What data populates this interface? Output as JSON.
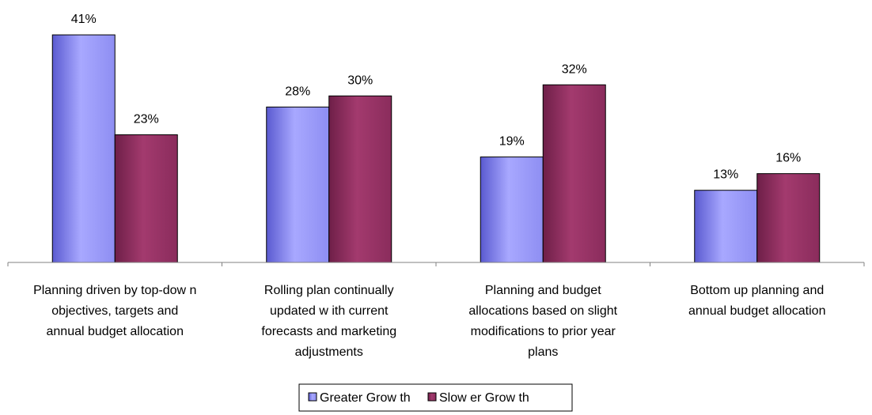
{
  "chart_data": {
    "type": "bar",
    "categories": [
      [
        "Planning driven by top-dow n",
        "objectives, targets and",
        "annual budget allocation"
      ],
      [
        "Rolling plan continually",
        "updated w ith current",
        "forecasts and marketing",
        "adjustments"
      ],
      [
        "Planning and budget",
        "allocations based on slight",
        "modifications to prior year",
        "plans"
      ],
      [
        "Bottom up planning and",
        "annual budget allocation"
      ]
    ],
    "series": [
      {
        "name": "Greater Grow th",
        "values": [
          41,
          28,
          19,
          13
        ],
        "labels": [
          "41%",
          "28%",
          "19%",
          "13%"
        ],
        "color": "#9999ff"
      },
      {
        "name": "Slow er Grow th",
        "values": [
          23,
          30,
          32,
          16
        ],
        "labels": [
          "23%",
          "30%",
          "32%",
          "16%"
        ],
        "color": "#993366"
      }
    ],
    "ylim": [
      0,
      45
    ],
    "grid": false,
    "legend_position": "bottom"
  }
}
